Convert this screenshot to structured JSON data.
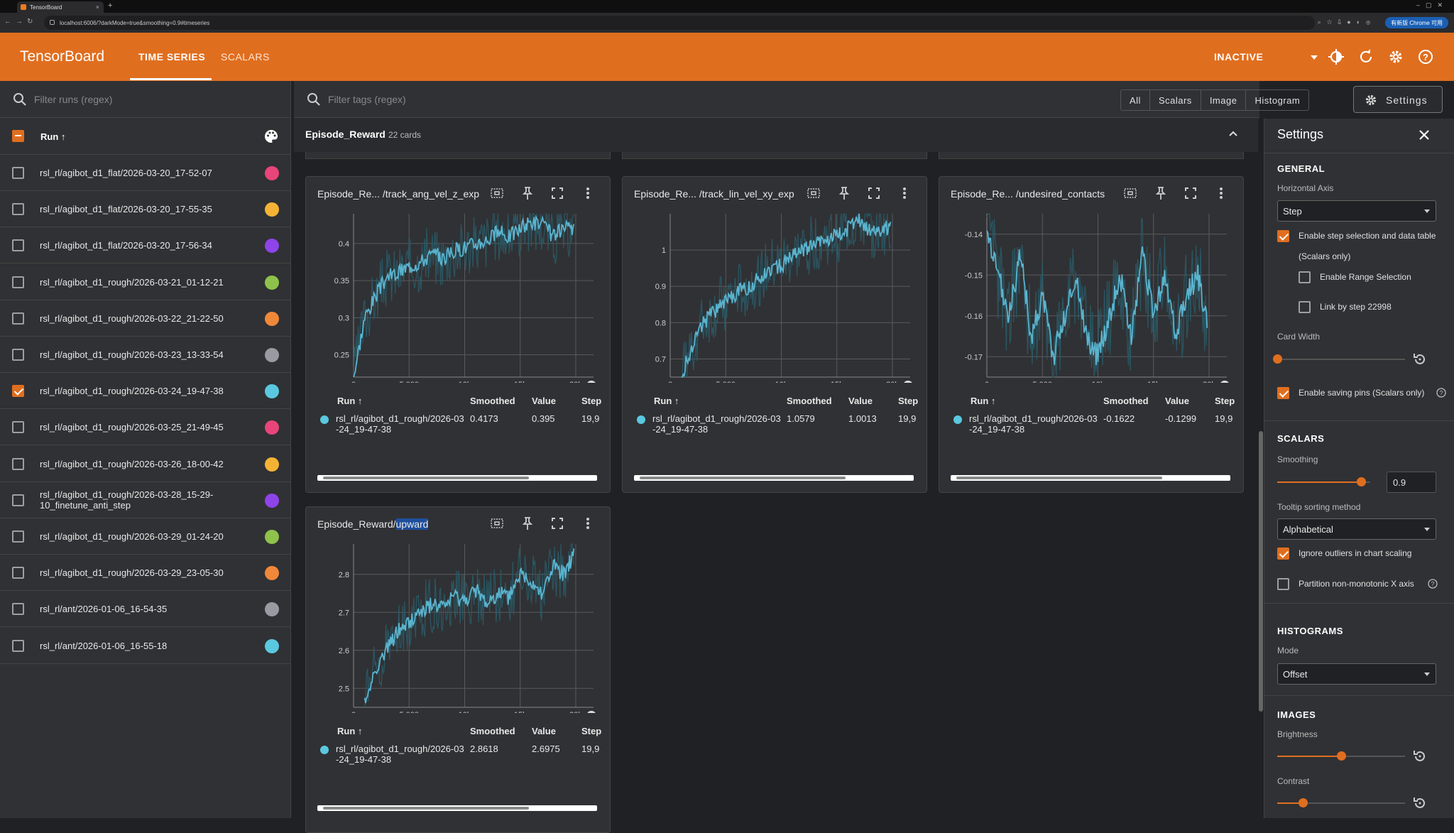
{
  "browser": {
    "tab_title": "TensorBoard",
    "url": "localhost:6006/?darkMode=true&smoothing=0.9#timeseries",
    "chrome_button": "有新版 Chrome 可用"
  },
  "header": {
    "brand": "TensorBoard",
    "tabs": [
      "TIME SERIES",
      "SCALARS"
    ],
    "status": "INACTIVE"
  },
  "runs_panel": {
    "filter_placeholder": "Filter runs (regex)",
    "column_label": "Run ↑",
    "runs": [
      {
        "name": "rsl_rl/agibot_d1_flat/2026-03-20_17-52-07",
        "checked": false,
        "color": "#e8457a"
      },
      {
        "name": "rsl_rl/agibot_d1_flat/2026-03-20_17-55-35",
        "checked": false,
        "color": "#f5b335"
      },
      {
        "name": "rsl_rl/agibot_d1_flat/2026-03-20_17-56-34",
        "checked": false,
        "color": "#8e44e8"
      },
      {
        "name": "rsl_rl/agibot_d1_rough/2026-03-21_01-12-21",
        "checked": false,
        "color": "#8ec24a"
      },
      {
        "name": "rsl_rl/agibot_d1_rough/2026-03-22_21-22-50",
        "checked": false,
        "color": "#f0883a"
      },
      {
        "name": "rsl_rl/agibot_d1_rough/2026-03-23_13-33-54",
        "checked": false,
        "color": "#9a9aa2"
      },
      {
        "name": "rsl_rl/agibot_d1_rough/2026-03-24_19-47-38",
        "checked": true,
        "color": "#5ac8e0"
      },
      {
        "name": "rsl_rl/agibot_d1_rough/2026-03-25_21-49-45",
        "checked": false,
        "color": "#e8457a"
      },
      {
        "name": "rsl_rl/agibot_d1_rough/2026-03-26_18-00-42",
        "checked": false,
        "color": "#f5b335"
      },
      {
        "name": "rsl_rl/agibot_d1_rough/2026-03-28_15-29-10_finetune_anti_step",
        "checked": false,
        "color": "#8e44e8"
      },
      {
        "name": "rsl_rl/agibot_d1_rough/2026-03-29_01-24-20",
        "checked": false,
        "color": "#8ec24a"
      },
      {
        "name": "rsl_rl/agibot_d1_rough/2026-03-29_23-05-30",
        "checked": false,
        "color": "#f0883a"
      },
      {
        "name": "rsl_rl/ant/2026-01-06_16-54-35",
        "checked": false,
        "color": "#9a9aa2"
      },
      {
        "name": "rsl_rl/ant/2026-01-06_16-55-18",
        "checked": false,
        "color": "#5ac8e0"
      }
    ]
  },
  "main": {
    "filter_placeholder": "Filter tags (regex)",
    "type_filters": [
      "All",
      "Scalars",
      "Image",
      "Histogram"
    ],
    "settings_button": "Settings",
    "group_title": "Episode_Reward",
    "group_count": "22 cards",
    "table_headers": [
      "Run ↑",
      "Smoothed",
      "Value",
      "Step"
    ],
    "cards": [
      {
        "title": "Episode_Re... /track_ang_vel_z_exp",
        "run": "rsl_rl/agibot_d1_rough/2026-03-24_19-47-38",
        "smoothed": "0.4173",
        "value": "0.395",
        "step": "19,9"
      },
      {
        "title": "Episode_Re... /track_lin_vel_xy_exp",
        "run": "rsl_rl/agibot_d1_rough/2026-03-24_19-47-38",
        "smoothed": "1.0579",
        "value": "1.0013",
        "step": "19,9"
      },
      {
        "title": "Episode_Re... /undesired_contacts",
        "run": "rsl_rl/agibot_d1_rough/2026-03-24_19-47-38",
        "smoothed": "-0.1622",
        "value": "-0.1299",
        "step": "19,9"
      },
      {
        "title_prefix": "Episode_Reward/",
        "title_highlight": "upward",
        "run": "rsl_rl/agibot_d1_rough/2026-03-24_19-47-38",
        "smoothed": "2.8618",
        "value": "2.6975",
        "step": "19,9"
      }
    ]
  },
  "chart_data": [
    {
      "type": "line",
      "title": "Episode_Re... /track_ang_vel_z_exp",
      "x_ticks": [
        "0",
        "5,000",
        "10k",
        "15k",
        "20k"
      ],
      "y_ticks": [
        "0.25",
        "0.3",
        "0.35",
        "0.4"
      ],
      "xlim": [
        0,
        20000
      ],
      "ylim": [
        0.22,
        0.44
      ],
      "grid": true,
      "series": [
        {
          "name": "rsl_rl/agibot_d1_rough/2026-03-24_19-47-38",
          "x": [
            0,
            1000,
            2000,
            3000,
            4000,
            5000,
            6000,
            7000,
            8000,
            9000,
            10000,
            11000,
            12000,
            13000,
            14000,
            15000,
            16000,
            17000,
            18000,
            19000,
            19900
          ],
          "y": [
            0.22,
            0.3,
            0.33,
            0.355,
            0.36,
            0.37,
            0.375,
            0.385,
            0.38,
            0.39,
            0.395,
            0.4,
            0.405,
            0.415,
            0.41,
            0.42,
            0.43,
            0.425,
            0.41,
            0.42,
            0.4173
          ]
        }
      ]
    },
    {
      "type": "line",
      "title": "Episode_Re... /track_lin_vel_xy_exp",
      "x_ticks": [
        "0",
        "5,000",
        "10k",
        "15k",
        "20k"
      ],
      "y_ticks": [
        "0.7",
        "0.8",
        "0.9",
        "1"
      ],
      "xlim": [
        0,
        20000
      ],
      "ylim": [
        0.65,
        1.1
      ],
      "grid": true,
      "series": [
        {
          "name": "rsl_rl/agibot_d1_rough/2026-03-24_19-47-38",
          "x": [
            1000,
            2000,
            3000,
            4000,
            5000,
            6000,
            7000,
            8000,
            9000,
            10000,
            11000,
            12000,
            13000,
            14000,
            15000,
            16000,
            17000,
            18000,
            19000,
            19900
          ],
          "y": [
            0.65,
            0.74,
            0.8,
            0.83,
            0.86,
            0.88,
            0.9,
            0.92,
            0.95,
            0.96,
            0.98,
            1.0,
            1.02,
            1.03,
            1.04,
            1.06,
            1.08,
            1.05,
            1.06,
            1.0579
          ]
        }
      ]
    },
    {
      "type": "line",
      "title": "Episode_Re... /undesired_contacts",
      "x_ticks": [
        "0",
        "5,000",
        "10k",
        "15k",
        "20k"
      ],
      "y_ticks": [
        "-0.14",
        "-0.15",
        "-0.16",
        "-0.17"
      ],
      "xlim": [
        0,
        20000
      ],
      "ylim": [
        -0.175,
        -0.135
      ],
      "grid": true,
      "series": [
        {
          "name": "rsl_rl/agibot_d1_rough/2026-03-24_19-47-38",
          "x": [
            0,
            1000,
            2000,
            3000,
            4000,
            5000,
            6000,
            7000,
            8000,
            9000,
            10000,
            11000,
            12000,
            13000,
            14000,
            15000,
            16000,
            17000,
            18000,
            19000,
            19900
          ],
          "y": [
            -0.14,
            -0.15,
            -0.16,
            -0.145,
            -0.165,
            -0.155,
            -0.17,
            -0.16,
            -0.15,
            -0.165,
            -0.17,
            -0.16,
            -0.15,
            -0.165,
            -0.145,
            -0.16,
            -0.15,
            -0.165,
            -0.155,
            -0.15,
            -0.1622
          ]
        }
      ]
    },
    {
      "type": "line",
      "title": "Episode_Reward/upward",
      "x_ticks": [
        "0",
        "5,000",
        "10k",
        "15k",
        "20k"
      ],
      "y_ticks": [
        "2.5",
        "2.6",
        "2.7",
        "2.8"
      ],
      "xlim": [
        0,
        20000
      ],
      "ylim": [
        2.45,
        2.88
      ],
      "grid": true,
      "series": [
        {
          "name": "rsl_rl/agibot_d1_rough/2026-03-24_19-47-38",
          "x": [
            1000,
            2000,
            3000,
            4000,
            5000,
            6000,
            7000,
            8000,
            9000,
            10000,
            11000,
            12000,
            13000,
            14000,
            15000,
            16000,
            17000,
            18000,
            19000,
            19900
          ],
          "y": [
            2.46,
            2.55,
            2.6,
            2.65,
            2.67,
            2.7,
            2.72,
            2.71,
            2.74,
            2.73,
            2.76,
            2.72,
            2.75,
            2.74,
            2.8,
            2.78,
            2.75,
            2.82,
            2.8,
            2.8618
          ]
        }
      ]
    }
  ],
  "settings_panel": {
    "title": "Settings",
    "general": {
      "heading": "GENERAL",
      "horizontal_axis_label": "Horizontal Axis",
      "horizontal_axis_value": "Step",
      "enable_step_selection": "Enable step selection and data table",
      "scalars_only": "(Scalars only)",
      "enable_range_selection": "Enable Range Selection",
      "link_by_step": "Link by step 22998",
      "card_width_label": "Card Width",
      "card_width_level": 0,
      "enable_saving_pins": "Enable saving pins (Scalars only)"
    },
    "scalars": {
      "heading": "SCALARS",
      "smoothing_label": "Smoothing",
      "smoothing_value": "0.9",
      "tooltip_label": "Tooltip sorting method",
      "tooltip_value": "Alphabetical",
      "ignore_outliers": "Ignore outliers in chart scaling",
      "partition": "Partition non-monotonic X axis"
    },
    "histograms": {
      "heading": "HISTOGRAMS",
      "mode_label": "Mode",
      "mode_value": "Offset"
    },
    "images": {
      "heading": "IMAGES",
      "brightness_label": "Brightness",
      "brightness_level": 0.5,
      "contrast_label": "Contrast",
      "contrast_level": 0.2
    }
  },
  "colors": {
    "accent": "#e06e1f",
    "line": "#5ab4cf",
    "raw_line": "#2a5a66"
  }
}
